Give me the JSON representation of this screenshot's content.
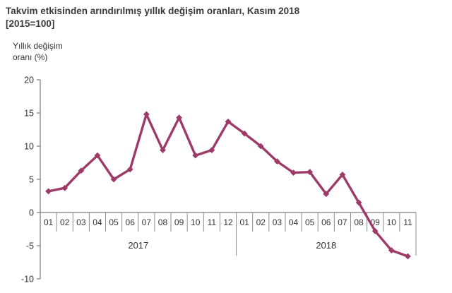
{
  "header": {
    "title_line1": "Takvim etkisinden arındırılmış yıllık değişim oranları, Kasım 2018",
    "title_line2": "[2015=100]",
    "ylabel_line1": "Yıllık değişim",
    "ylabel_line2": "oranı (%)"
  },
  "colors": {
    "line": "#9E3A68",
    "axis": "#7f7f7f",
    "separator": "#8c8c8c",
    "text": "#333333",
    "title_text": "#3a3a3a"
  },
  "chart_data": {
    "type": "line",
    "title": "Takvim etkisinden arındırılmış yıllık değişim oranları, Kasım 2018 [2015=100]",
    "xlabel": "",
    "ylabel": "Yıllık değişim oranı (%)",
    "ylim": [
      -10,
      20
    ],
    "y_ticks": [
      20,
      15,
      10,
      5,
      0,
      -5,
      -10
    ],
    "grid": false,
    "legend_position": "none",
    "categories": [
      "01",
      "02",
      "03",
      "04",
      "05",
      "06",
      "07",
      "08",
      "09",
      "10",
      "11",
      "12",
      "01",
      "02",
      "03",
      "04",
      "05",
      "06",
      "07",
      "08",
      "09",
      "10",
      "11"
    ],
    "category_years": [
      {
        "label": "2017",
        "count": 12
      },
      {
        "label": "2018",
        "count": 11
      }
    ],
    "series": [
      {
        "name": "Yıllık değişim oranı (%)",
        "color": "#9E3A68",
        "marker": "diamond",
        "values": [
          3.2,
          3.7,
          6.3,
          8.6,
          5.0,
          6.5,
          14.8,
          9.4,
          14.3,
          8.6,
          9.4,
          13.7,
          11.9,
          10.0,
          7.7,
          6.0,
          6.1,
          2.8,
          5.7,
          1.5,
          -2.8,
          -5.7,
          -6.6
        ]
      }
    ]
  }
}
